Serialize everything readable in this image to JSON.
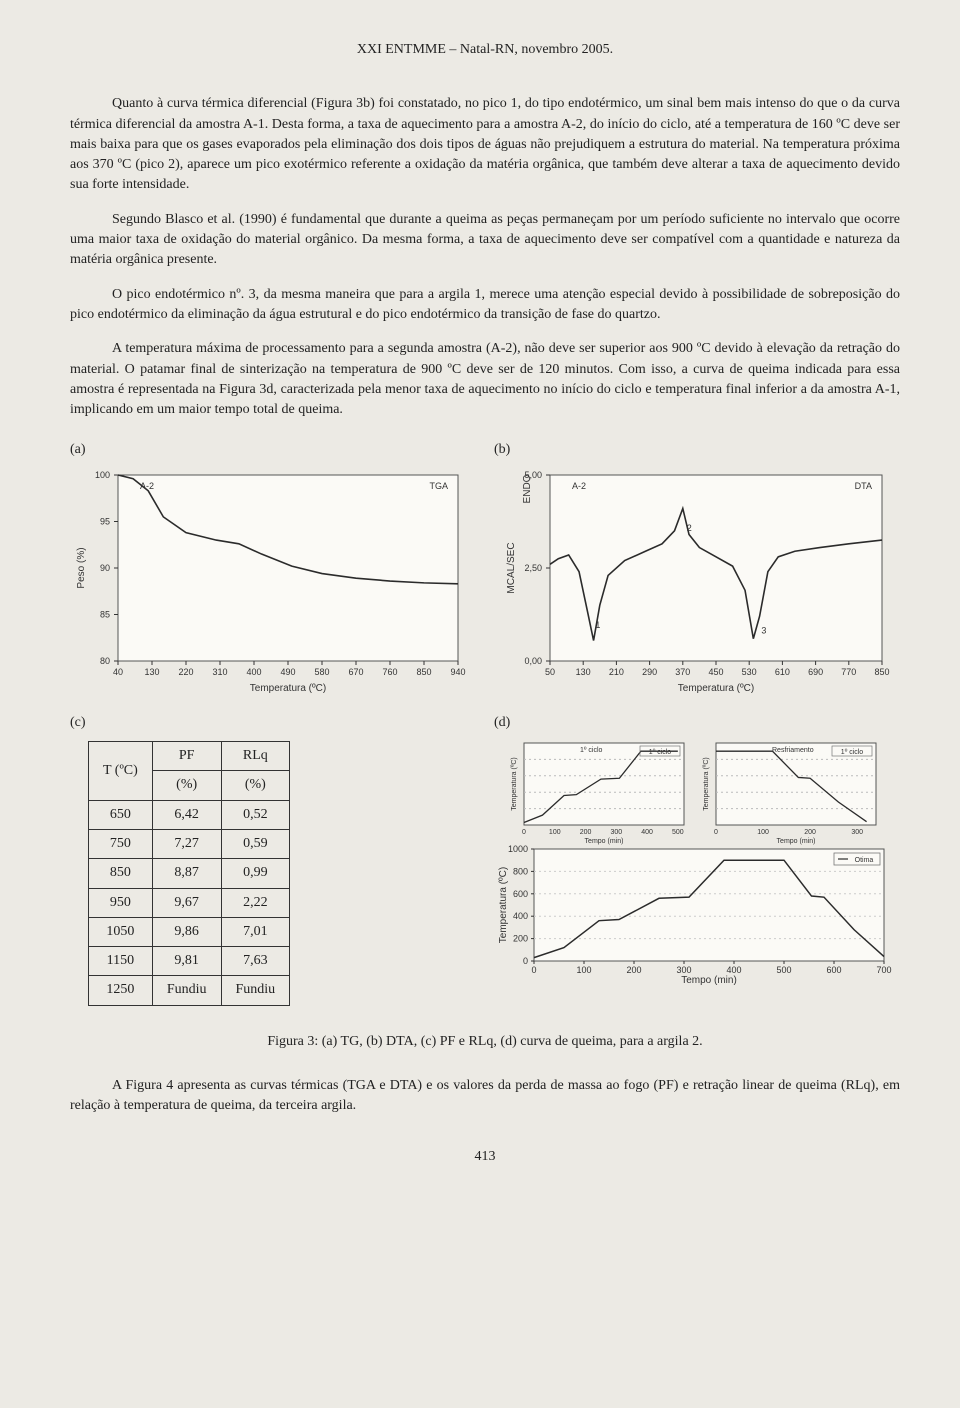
{
  "header": "XXI ENTMME – Natal-RN, novembro 2005.",
  "paragraphs": [
    "Quanto à curva térmica diferencial (Figura 3b) foi constatado, no pico 1, do tipo endotérmico, um sinal bem mais intenso do que o da curva térmica diferencial da amostra A-1. Desta forma, a taxa de aquecimento para a amostra A-2, do início do ciclo, até a temperatura de 160 ºC deve ser mais baixa para que os gases evaporados pela eliminação dos dois tipos de águas não prejudiquem a estrutura do material. Na temperatura próxima aos 370 ºC (pico 2), aparece um pico exotérmico referente a oxidação da matéria orgânica, que também deve alterar a taxa de aquecimento devido sua forte intensidade.",
    "Segundo Blasco et al. (1990) é fundamental que durante a queima as peças permaneçam por um período suficiente no intervalo que ocorre uma maior taxa de oxidação do material orgânico. Da mesma forma, a taxa de aquecimento deve ser compatível com a quantidade e natureza da matéria orgânica presente.",
    "O pico endotérmico nº. 3, da mesma maneira que para a argila 1, merece uma atenção especial devido à possibilidade de sobreposição do pico endotérmico da eliminação da água estrutural e do pico endotérmico da transição de fase do quartzo.",
    "A temperatura máxima de processamento para a segunda amostra (A-2), não deve ser superior aos 900 ºC devido à elevação da retração do material. O patamar final de sinterização na temperatura de 900 ºC deve ser de 120 minutos. Com isso, a curva de queima indicada para essa amostra é representada na Figura 3d, caracterizada pela menor taxa de aquecimento no início do ciclo e temperatura final inferior a da amostra A-1, implicando em um maior tempo total de queima."
  ],
  "panel_labels": {
    "a": "(a)",
    "b": "(b)",
    "c": "(c)",
    "d": "(d)"
  },
  "chart_a": {
    "type": "line",
    "series_label": "A-2",
    "legend": "TGA",
    "xlabel": "Temperatura (ºC)",
    "ylabel": "Peso (%)",
    "xlim": [
      40,
      940
    ],
    "ylim": [
      80,
      100
    ],
    "xticks": [
      40,
      130,
      220,
      310,
      400,
      490,
      580,
      670,
      760,
      850,
      940
    ],
    "yticks": [
      80,
      85,
      90,
      95,
      100
    ],
    "line_color": "#2b2b2b",
    "background_color": "#fbfaf6",
    "border_color": "#555555",
    "points": [
      [
        40,
        100
      ],
      [
        80,
        99.6
      ],
      [
        120,
        98.3
      ],
      [
        160,
        95.5
      ],
      [
        220,
        93.8
      ],
      [
        300,
        93.0
      ],
      [
        360,
        92.6
      ],
      [
        420,
        91.5
      ],
      [
        500,
        90.2
      ],
      [
        580,
        89.4
      ],
      [
        670,
        88.9
      ],
      [
        760,
        88.6
      ],
      [
        850,
        88.4
      ],
      [
        940,
        88.3
      ]
    ]
  },
  "chart_b": {
    "type": "line",
    "series_label": "A-2",
    "legend": "DTA",
    "xlabel": "Temperatura (ºC)",
    "ylabel": "MCAL/SEC",
    "ylabel2": "ENDO",
    "xlim": [
      50,
      850
    ],
    "ylim": [
      0,
      5
    ],
    "xticks": [
      50,
      130,
      210,
      290,
      370,
      450,
      530,
      610,
      690,
      770,
      850
    ],
    "yticks": [
      0,
      2.5,
      5
    ],
    "yticklabels": [
      "0,00",
      "2,50",
      "5,00"
    ],
    "peak_labels": [
      "1",
      "2",
      "3"
    ],
    "peak_positions": [
      [
        145,
        1.05
      ],
      [
        365,
        3.65
      ],
      [
        545,
        0.9
      ]
    ],
    "line_color": "#2b2b2b",
    "background_color": "#fbfaf6",
    "border_color": "#555555",
    "points": [
      [
        50,
        2.6
      ],
      [
        70,
        2.75
      ],
      [
        95,
        2.85
      ],
      [
        120,
        2.4
      ],
      [
        140,
        1.35
      ],
      [
        155,
        0.55
      ],
      [
        170,
        1.5
      ],
      [
        190,
        2.3
      ],
      [
        230,
        2.7
      ],
      [
        280,
        2.95
      ],
      [
        320,
        3.15
      ],
      [
        350,
        3.5
      ],
      [
        370,
        4.1
      ],
      [
        385,
        3.4
      ],
      [
        410,
        3.05
      ],
      [
        450,
        2.8
      ],
      [
        490,
        2.55
      ],
      [
        520,
        1.9
      ],
      [
        540,
        0.6
      ],
      [
        555,
        1.2
      ],
      [
        575,
        2.4
      ],
      [
        600,
        2.8
      ],
      [
        640,
        2.95
      ],
      [
        700,
        3.05
      ],
      [
        770,
        3.15
      ],
      [
        850,
        3.25
      ]
    ]
  },
  "table_c": {
    "columns": [
      "T (ºC)",
      "PF",
      "RLq"
    ],
    "subheader": [
      "",
      "(%)",
      "(%)"
    ],
    "rows": [
      [
        "650",
        "6,42",
        "0,52"
      ],
      [
        "750",
        "7,27",
        "0,59"
      ],
      [
        "850",
        "8,87",
        "0,99"
      ],
      [
        "950",
        "9,67",
        "2,22"
      ],
      [
        "1050",
        "9,86",
        "7,01"
      ],
      [
        "1150",
        "9,81",
        "7,63"
      ],
      [
        "1250",
        "Fundiu",
        "Fundiu"
      ]
    ]
  },
  "chart_d": {
    "type": "line",
    "legend": "Otima",
    "xlabel": "Tempo (min)",
    "ylabel": "Temperatura (ºC)",
    "mini1_tag": "1º ciclo",
    "mini2_tag": "Resfriamento",
    "line_color": "#2b2b2b",
    "background_color": "#fbfaf6",
    "border_color": "#555555",
    "xlim": [
      0,
      700
    ],
    "ylim": [
      0,
      1000
    ],
    "xticks": [
      0,
      100,
      200,
      300,
      400,
      500,
      600,
      700
    ],
    "yticks": [
      0,
      200,
      400,
      600,
      800,
      1000
    ],
    "mini_xticks": [
      0,
      100,
      200,
      300,
      400,
      500,
      600
    ],
    "points": [
      [
        0,
        30
      ],
      [
        60,
        120
      ],
      [
        130,
        360
      ],
      [
        170,
        370
      ],
      [
        250,
        560
      ],
      [
        310,
        570
      ],
      [
        380,
        900
      ],
      [
        500,
        900
      ],
      [
        555,
        580
      ],
      [
        580,
        570
      ],
      [
        640,
        280
      ],
      [
        700,
        40
      ]
    ],
    "mini1_points": [
      [
        0,
        30
      ],
      [
        60,
        120
      ],
      [
        130,
        360
      ],
      [
        170,
        370
      ],
      [
        250,
        560
      ],
      [
        310,
        570
      ],
      [
        380,
        900
      ],
      [
        500,
        900
      ]
    ],
    "mini2_points": [
      [
        0,
        900
      ],
      [
        120,
        900
      ],
      [
        175,
        580
      ],
      [
        200,
        570
      ],
      [
        260,
        280
      ],
      [
        320,
        40
      ]
    ]
  },
  "caption": "Figura 3: (a) TG, (b) DTA, (c) PF e RLq, (d) curva de queima, para a argila 2.",
  "closing_para": "A Figura 4 apresenta as curvas térmicas (TGA e DTA) e os valores da perda de massa ao fogo (PF) e retração linear de queima (RLq), em relação à temperatura de queima, da terceira argila.",
  "page_number": "413"
}
